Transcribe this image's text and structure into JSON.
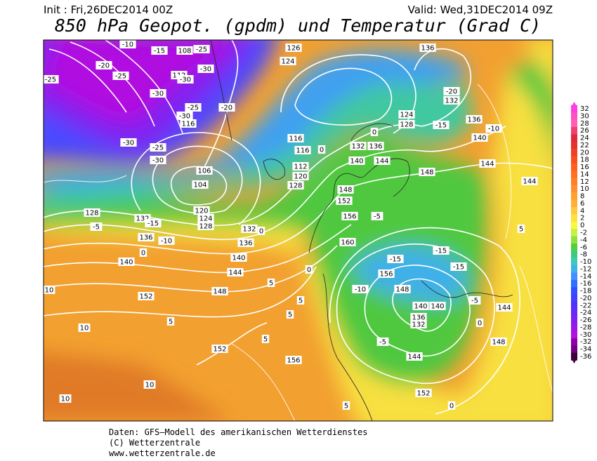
{
  "header": {
    "init": "Init : Fri,26DEC2014 00Z",
    "valid": "Valid: Wed,31DEC2014 09Z",
    "title": "850 hPa Geopot. (gpdm) und Temperatur (Grad C)"
  },
  "colorbar": {
    "ticks": [
      32,
      30,
      28,
      26,
      24,
      22,
      20,
      18,
      16,
      14,
      12,
      10,
      8,
      6,
      4,
      2,
      0,
      -2,
      -4,
      -6,
      -8,
      -10,
      -12,
      -14,
      -16,
      -18,
      -20,
      -22,
      -24,
      -26,
      -28,
      -30,
      -32,
      -34,
      -36
    ],
    "colors": [
      "#ff40e0",
      "#ff50c8",
      "#ff60b0",
      "#f04070",
      "#e02840",
      "#e83030",
      "#f04028",
      "#f85020",
      "#ff6020",
      "#ff7020",
      "#ff8028",
      "#ff9030",
      "#ffa030",
      "#ffb038",
      "#ffc840",
      "#ffe040",
      "#f8f840",
      "#c8f040",
      "#90e040",
      "#50d040",
      "#40c880",
      "#40c8c0",
      "#40b0e8",
      "#4090ff",
      "#3070ff",
      "#3050ff",
      "#4040ff",
      "#5030ff",
      "#6828f8",
      "#8020f0",
      "#9818e8",
      "#b010e0",
      "#9000a8",
      "#700080",
      "#400040"
    ]
  },
  "map_labels": [
    -10,
    -15,
    108,
    -25,
    -20,
    -25,
    112,
    -30,
    -30,
    -25,
    -30,
    -25,
    -30,
    116,
    -30,
    -25,
    -30,
    -20,
    124,
    126,
    136,
    -20,
    132,
    136,
    -15,
    -10,
    140,
    144,
    144,
    148,
    144,
    140,
    132,
    136,
    128,
    124,
    116,
    116,
    112,
    120,
    128,
    104,
    106,
    120,
    124,
    128,
    128,
    132,
    -15,
    -5,
    136,
    -10,
    0,
    140,
    132,
    136,
    140,
    144,
    148,
    152,
    10,
    10,
    152,
    156,
    10,
    10,
    5,
    5,
    5,
    5,
    160,
    156,
    152,
    148,
    -15,
    -15,
    -15,
    156,
    148,
    -10,
    140,
    140,
    136,
    132,
    -5,
    144,
    152,
    148,
    144,
    -5,
    0,
    5,
    5,
    0,
    -5,
    0,
    0,
    0,
    0,
    5
  ],
  "footer": {
    "line1": "Daten: GFS–Modell des amerikanischen Wetterdienstes",
    "line2": "(C) Wetterzentrale",
    "line3": "www.wetterzentrale.de"
  }
}
